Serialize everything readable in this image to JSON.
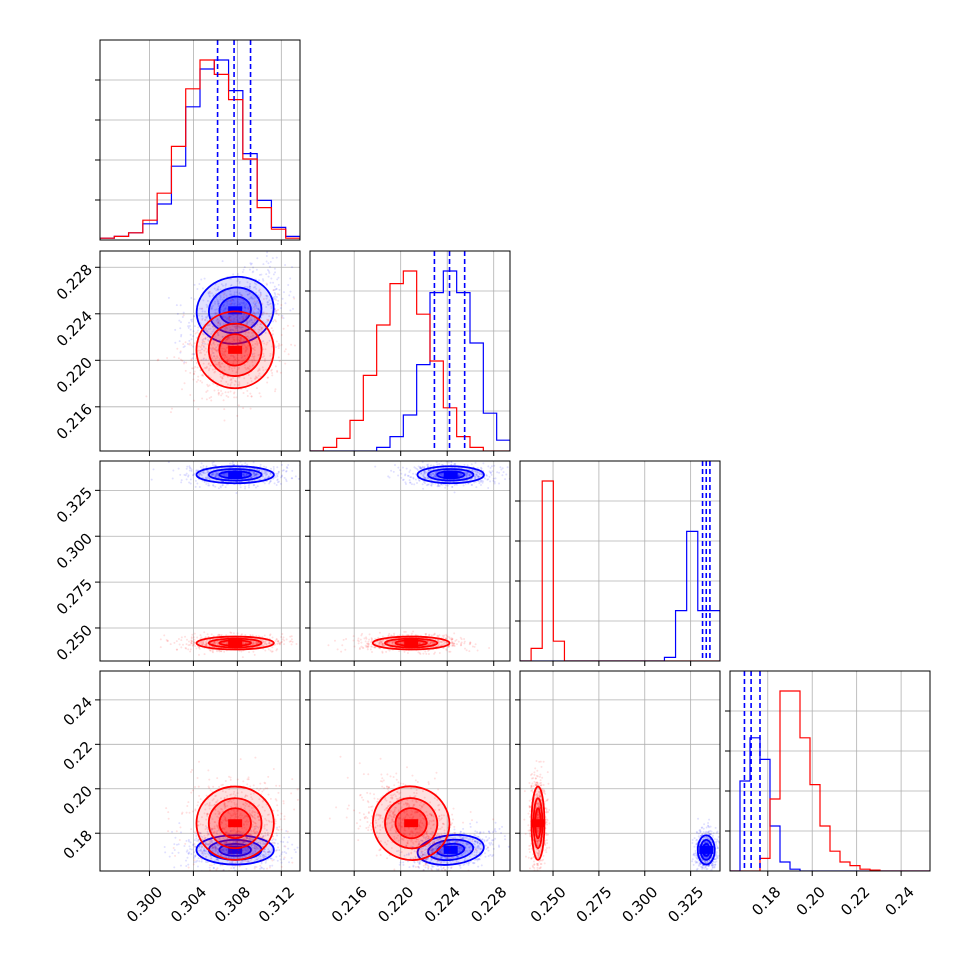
{
  "colors": {
    "red": "#ff0000",
    "blue": "#0000ff",
    "grid": "#b0b0b0",
    "axis": "#000000",
    "background": "#ffffff"
  },
  "chart_data": {
    "type": "corner",
    "parameters": 4,
    "grid": true,
    "quantile_lines": {
      "color": "blue",
      "style": "dashed",
      "values": [
        [
          0.3062,
          0.3077,
          0.3092
        ],
        [
          0.2229,
          0.2242,
          0.2255
        ],
        [
          0.3315,
          0.3335,
          0.3355
        ],
        [
          0.1695,
          0.1725,
          0.1765
        ]
      ]
    },
    "ranges": [
      [
        0.2955,
        0.3137
      ],
      [
        0.2122,
        0.2294
      ],
      [
        0.232,
        0.341
      ],
      [
        0.163,
        0.253
      ]
    ],
    "ticks": {
      "p1": [
        "0.300",
        "0.304",
        "0.308",
        "0.312"
      ],
      "p2": [
        "0.216",
        "0.220",
        "0.224",
        "0.228"
      ],
      "p3": [
        "0.250",
        "0.275",
        "0.300",
        "0.325"
      ],
      "p4_y": [
        "0.18",
        "0.20",
        "0.22",
        "0.24"
      ],
      "p4_x": [
        "0.18",
        "0.20",
        "0.22",
        "0.24"
      ]
    },
    "series": [
      {
        "color": "blue",
        "means": [
          0.3078,
          0.2243,
          0.3335,
          0.1725
        ],
        "stds": [
          0.0016,
          0.0013,
          0.0021,
          0.003
        ],
        "corr12": 0.4,
        "corr24": 0.4,
        "corr34": 0.0
      },
      {
        "color": "red",
        "means": [
          0.3078,
          0.2209,
          0.2418,
          0.1845
        ],
        "stds": [
          0.0016,
          0.0015,
          0.0016,
          0.0075
        ],
        "corr12": 0.3,
        "corr24": -0.5,
        "corr34": 0.0
      }
    ],
    "histograms": [
      {
        "param": 1,
        "blue": [
          0.01,
          0.02,
          0.04,
          0.09,
          0.2,
          0.41,
          0.74,
          0.95,
          1.0,
          0.83,
          0.48,
          0.22,
          0.07,
          0.02
        ],
        "red": [
          0.01,
          0.02,
          0.04,
          0.11,
          0.26,
          0.52,
          0.84,
          1.0,
          0.92,
          0.78,
          0.45,
          0.18,
          0.06,
          0.01
        ]
      },
      {
        "param": 2,
        "blue": [
          0,
          0,
          0,
          0,
          0,
          0.02,
          0.08,
          0.2,
          0.48,
          0.88,
          1.0,
          0.88,
          0.6,
          0.21,
          0.06
        ],
        "red": [
          0,
          0.02,
          0.07,
          0.17,
          0.42,
          0.7,
          0.93,
          1.0,
          0.76,
          0.5,
          0.24,
          0.08,
          0.02,
          0,
          0
        ]
      },
      {
        "param": 3,
        "blue": [
          0,
          0,
          0,
          0,
          0,
          0,
          0,
          0,
          0,
          0,
          0,
          0,
          0,
          0.02,
          0.28,
          0.72,
          0.28,
          0.28
        ],
        "red": [
          0,
          0.07,
          1.0,
          0.11,
          0,
          0,
          0,
          0,
          0,
          0,
          0,
          0,
          0,
          0,
          0,
          0,
          0,
          0
        ]
      },
      {
        "param": 4,
        "blue": [
          0,
          0.5,
          0.74,
          0.62,
          0.25,
          0.05,
          0.01,
          0,
          0,
          0,
          0,
          0,
          0,
          0,
          0,
          0,
          0,
          0,
          0,
          0
        ],
        "red": [
          0,
          0,
          0,
          0.07,
          0.4,
          1.0,
          1.0,
          0.74,
          0.48,
          0.25,
          0.11,
          0.05,
          0.03,
          0.01,
          0.005,
          0,
          0,
          0,
          0,
          0
        ]
      }
    ]
  }
}
